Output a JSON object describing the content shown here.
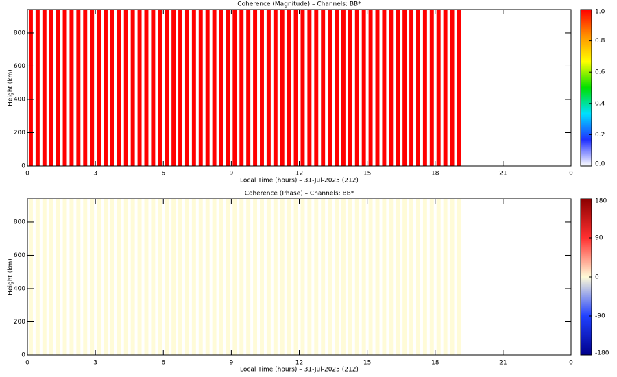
{
  "chart_data": [
    {
      "type": "heatmap-columns",
      "title": "Coherence (Magnitude) – Channels: BB*",
      "xlabel": "Local Time (hours) – 31-Jul-2025 (212)",
      "ylabel": "Height (km)",
      "x": [
        0.15,
        0.45,
        0.75,
        1.05,
        1.35,
        1.65,
        1.95,
        2.25,
        2.55,
        2.85,
        3.15,
        3.45,
        3.75,
        4.05,
        4.35,
        4.65,
        4.95,
        5.25,
        5.55,
        5.85,
        6.15,
        6.45,
        6.75,
        7.05,
        7.35,
        7.65,
        7.95,
        8.25,
        8.55,
        8.85,
        9.15,
        9.45,
        9.75,
        10.05,
        10.35,
        10.65,
        10.95,
        11.25,
        11.55,
        11.85,
        12.15,
        12.45,
        12.75,
        13.05,
        13.35,
        13.65,
        13.95,
        14.25,
        14.55,
        14.85,
        15.15,
        15.45,
        15.75,
        16.05,
        16.35,
        16.65,
        16.95,
        17.25,
        17.55,
        17.85,
        18.15,
        18.45,
        18.75,
        19.05
      ],
      "values": [
        1,
        1,
        1,
        1,
        1,
        1,
        1,
        1,
        1,
        1,
        1,
        1,
        1,
        1,
        1,
        1,
        1,
        1,
        1,
        1,
        1,
        1,
        1,
        1,
        1,
        1,
        1,
        1,
        1,
        1,
        1,
        1,
        1,
        1,
        1,
        1,
        1,
        1,
        1,
        1,
        1,
        1,
        1,
        1,
        1,
        1,
        1,
        1,
        1,
        1,
        1,
        1,
        1,
        1,
        1,
        1,
        1,
        1,
        1,
        1,
        1,
        1,
        1,
        1
      ],
      "xlim": [
        0,
        24
      ],
      "xticks": [
        0,
        3,
        6,
        9,
        12,
        15,
        18,
        21,
        {
          "value": 24,
          "label": "0"
        }
      ],
      "ylim": [
        0,
        940
      ],
      "yticks": [
        0,
        200,
        400,
        600,
        800
      ],
      "zlim": [
        0,
        1
      ],
      "zticks": [
        {
          "value": 0,
          "label": "0.0"
        },
        0.2,
        0.4,
        0.6,
        0.8,
        {
          "value": 1,
          "label": "1.0"
        }
      ],
      "colors": [
        "#ffffff",
        "#2030ff",
        "#00e0ff",
        "#00e000",
        "#ffff00",
        "#ff9000",
        "#ff0000"
      ]
    },
    {
      "type": "heatmap-columns",
      "title": "Coherence (Phase) – Channels: BB*",
      "xlabel": "Local Time (hours) – 31-Jul-2025 (212)",
      "ylabel": "Height (km)",
      "x": [
        0.15,
        0.45,
        0.75,
        1.05,
        1.35,
        1.65,
        1.95,
        2.25,
        2.55,
        2.85,
        3.15,
        3.45,
        3.75,
        4.05,
        4.35,
        4.65,
        4.95,
        5.25,
        5.55,
        5.85,
        6.15,
        6.45,
        6.75,
        7.05,
        7.35,
        7.65,
        7.95,
        8.25,
        8.55,
        8.85,
        9.15,
        9.45,
        9.75,
        10.05,
        10.35,
        10.65,
        10.95,
        11.25,
        11.55,
        11.85,
        12.15,
        12.45,
        12.75,
        13.05,
        13.35,
        13.65,
        13.95,
        14.25,
        14.55,
        14.85,
        15.15,
        15.45,
        15.75,
        16.05,
        16.35,
        16.65,
        16.95,
        17.25,
        17.55,
        17.85,
        18.15,
        18.45,
        18.75,
        19.05
      ],
      "values": [
        0,
        0,
        0,
        0,
        0,
        0,
        0,
        0,
        0,
        0,
        0,
        0,
        0,
        0,
        0,
        0,
        0,
        0,
        0,
        0,
        0,
        0,
        0,
        0,
        0,
        0,
        0,
        0,
        0,
        0,
        0,
        0,
        0,
        0,
        0,
        0,
        0,
        0,
        0,
        0,
        0,
        0,
        0,
        0,
        0,
        0,
        0,
        0,
        0,
        0,
        0,
        0,
        0,
        0,
        0,
        0,
        0,
        0,
        0,
        0,
        0,
        0,
        0,
        0
      ],
      "xlim": [
        0,
        24
      ],
      "xticks": [
        0,
        3,
        6,
        9,
        12,
        15,
        18,
        21,
        {
          "value": 24,
          "label": "0"
        }
      ],
      "ylim": [
        0,
        940
      ],
      "yticks": [
        0,
        200,
        400,
        600,
        800
      ],
      "zlim": [
        -180,
        180
      ],
      "zticks": [
        -180,
        -90,
        0,
        90,
        180
      ],
      "colors": [
        "#00008b",
        "#2040ff",
        "#fffbd8",
        "#ff3030",
        "#8b0000"
      ]
    }
  ]
}
